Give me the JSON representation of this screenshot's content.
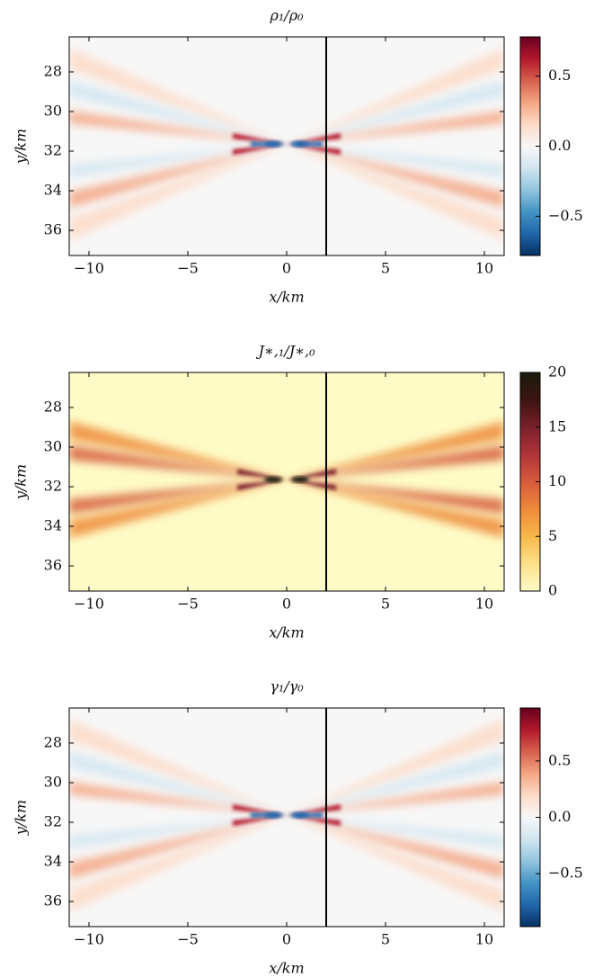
{
  "chart_data": [
    {
      "type": "heatmap",
      "title": "ρ₁/ρ₀",
      "xlabel": "x/km",
      "ylabel": "y/km",
      "xlim": [
        -11,
        11
      ],
      "ylim": [
        26.23,
        37.27
      ],
      "y_inverted": true,
      "xticks": [
        {
          "value": -10,
          "label": "−10"
        },
        {
          "value": -5,
          "label": "−5"
        },
        0,
        5,
        10
      ],
      "yticks": [
        28,
        30,
        32,
        34,
        36
      ],
      "vline": 2,
      "clim": [
        -0.78,
        0.78
      ],
      "cticks": [
        {
          "value": -0.5,
          "label": "−0.5"
        },
        {
          "value": 0,
          "label": "0.0"
        },
        0.5
      ],
      "colors": [
        "#053061",
        "#2166ac",
        "#4393c3",
        "#92c5de",
        "#d1e5f0",
        "#f7f7f7",
        "#fddbc7",
        "#f4a582",
        "#d6604d",
        "#b2182b",
        "#67001f"
      ]
    },
    {
      "type": "heatmap",
      "title": "J∗,₁/J∗,₀",
      "xlabel": "x/km",
      "ylabel": "y/km",
      "xlim": [
        -11,
        11
      ],
      "ylim": [
        26.23,
        37.27
      ],
      "y_inverted": true,
      "xticks": [
        {
          "value": -10,
          "label": "−10"
        },
        {
          "value": -5,
          "label": "−5"
        },
        0,
        5,
        10
      ],
      "yticks": [
        28,
        30,
        32,
        34,
        36
      ],
      "vline": 2,
      "clim": [
        0,
        20
      ],
      "cticks": [
        0,
        5,
        10,
        15,
        20
      ],
      "colors": [
        "#fefbc6",
        "#fde08a",
        "#f7b848",
        "#ee8a3a",
        "#d65a3a",
        "#b0343a",
        "#7a1f2a",
        "#3c1410",
        "#1b1b0e"
      ]
    },
    {
      "type": "heatmap",
      "title": "γ₁/γ₀",
      "xlabel": "x/km",
      "ylabel": "y/km",
      "xlim": [
        -11,
        11
      ],
      "ylim": [
        26.23,
        37.27
      ],
      "y_inverted": true,
      "xticks": [
        {
          "value": -10,
          "label": "−10"
        },
        {
          "value": -5,
          "label": "−5"
        },
        0,
        5,
        10
      ],
      "yticks": [
        28,
        30,
        32,
        34,
        36
      ],
      "vline": 2,
      "clim": [
        -0.97,
        0.97
      ],
      "cticks": [
        {
          "value": -0.5,
          "label": "−0.5"
        },
        {
          "value": 0,
          "label": "0.0"
        },
        0.5
      ],
      "colors": [
        "#053061",
        "#2166ac",
        "#4393c3",
        "#92c5de",
        "#d1e5f0",
        "#f7f7f7",
        "#fddbc7",
        "#f4a582",
        "#d6604d",
        "#b2182b",
        "#67001f"
      ]
    }
  ]
}
